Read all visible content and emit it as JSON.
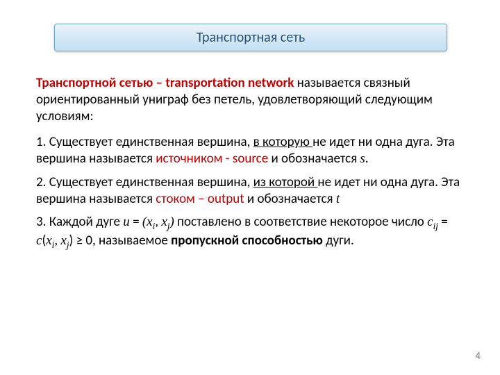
{
  "colors": {
    "title_bg_top": "#eaf3fb",
    "title_bg_mid": "#d7e9f7",
    "title_bg_bot": "#c2dff4",
    "title_border": "#6fa8c9",
    "title_text": "#1f4e79",
    "accent_red": "#c00000",
    "text": "#000000",
    "page_num": "#7f7f7f",
    "background": "#ffffff"
  },
  "fonts": {
    "body_family": "Calibri",
    "math_family": "Cambria Math",
    "title_size_pt": 20,
    "body_size_pt": 19
  },
  "title": "Транспортная сеть",
  "intro": {
    "lead_red": "Транспортной сетью – transportation network",
    "rest": " называется связный ориентированный униграф без петель, удовлетворяющий следующим условиям:"
  },
  "item1": {
    "a": "1. Существует единственная вершина, ",
    "ul": "в которую ",
    "b": "не идет ни одна дуга. Эта вершина называется ",
    "red": "источником - source",
    "c": " и обозначается ",
    "math": "s",
    "d": "."
  },
  "item2": {
    "a": "2. Существует единственная вершина, ",
    "ul": "из которой ",
    "b": "не идет ни одна дуга. Эта вершина называется ",
    "red": "стоком – output",
    "c": " и обозначается ",
    "math": "t"
  },
  "item3": {
    "a": "3. Каждой дуге ",
    "m_u": "u",
    "eq1": " = ",
    "lp": "(",
    "m_xi": "x",
    "m_i": "i",
    "comma": ", ",
    "m_xj": "x",
    "m_j": "j",
    "rp": ")",
    "b": " поставлено в соответствие некоторое число ",
    "m_c": "c",
    "m_ij": "ij",
    "eq2": " = ",
    "m_cf": "c",
    "lp2": "(",
    "m_xi2": "x",
    "m_i2": "i",
    "comma2": ", ",
    "m_xj2": "x",
    "m_j2": "j",
    "rp2": ")",
    "ge": " ≥ 0",
    "c": ", называемое ",
    "bold": "пропускной способностью",
    "d": " дуги."
  },
  "page_number": "4"
}
